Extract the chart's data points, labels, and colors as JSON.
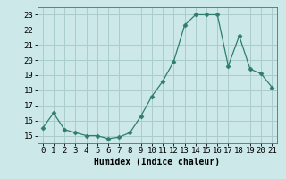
{
  "x": [
    0,
    1,
    2,
    3,
    4,
    5,
    6,
    7,
    8,
    9,
    10,
    11,
    12,
    13,
    14,
    15,
    16,
    17,
    18,
    19,
    20,
    21
  ],
  "y": [
    15.5,
    16.5,
    15.4,
    15.2,
    15.0,
    15.0,
    14.8,
    14.9,
    15.2,
    16.3,
    17.6,
    18.6,
    19.9,
    22.3,
    23.0,
    23.0,
    23.0,
    19.6,
    21.6,
    19.4,
    19.1,
    18.2
  ],
  "line_color": "#2e7d6e",
  "marker": "D",
  "marker_size": 2.5,
  "bg_color": "#cce8e8",
  "grid_color": "#aacccc",
  "xlabel": "Humidex (Indice chaleur)",
  "ylim": [
    14.5,
    23.5
  ],
  "xlim": [
    -0.5,
    21.5
  ],
  "yticks": [
    15,
    16,
    17,
    18,
    19,
    20,
    21,
    22,
    23
  ],
  "xticks": [
    0,
    1,
    2,
    3,
    4,
    5,
    6,
    7,
    8,
    9,
    10,
    11,
    12,
    13,
    14,
    15,
    16,
    17,
    18,
    19,
    20,
    21
  ],
  "xlabel_fontsize": 7,
  "tick_fontsize": 6.5
}
